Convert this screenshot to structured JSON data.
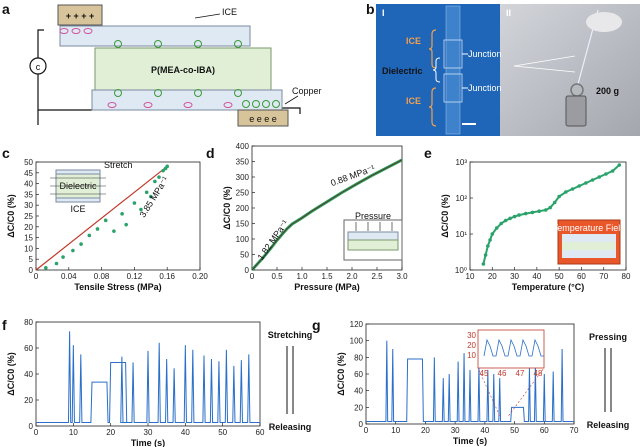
{
  "panel_letters": [
    "a",
    "b",
    "c",
    "d",
    "e",
    "f",
    "g"
  ],
  "panel_a": {
    "ice_label": "ICE",
    "dielectric_label": "P(MEA-co-IBA)",
    "copper_label": "Copper",
    "circuit_label": "c",
    "top_charges": "+ + + +",
    "bottom_charges": "e e e e"
  },
  "panel_b": {
    "sub_i": "I",
    "sub_ii": "II",
    "ice_top": "ICE",
    "ice_bottom": "ICE",
    "dielectric": "Dielectric",
    "junction_top": "Junction",
    "junction_bottom": "Junction",
    "weight": "200 g",
    "bg_color": "#1f66b8",
    "accent_color": "#f0a050"
  },
  "chart_data": [
    {
      "panel": "c",
      "type": "scatter",
      "xlabel": "Tensile Stress (MPa)",
      "ylabel": "ΔC/C0 (%)",
      "xlim": [
        0,
        0.2
      ],
      "ylim": [
        0,
        50
      ],
      "xticks": [
        "0",
        "0.04",
        "0.08",
        "0.12",
        "0.16",
        "0.20"
      ],
      "yticks": [
        "0",
        "5",
        "10",
        "15",
        "20",
        "25",
        "30",
        "35",
        "40",
        "45",
        "50"
      ],
      "points_x": [
        0.012,
        0.025,
        0.033,
        0.045,
        0.055,
        0.065,
        0.075,
        0.085,
        0.095,
        0.105,
        0.11,
        0.12,
        0.128,
        0.135,
        0.14,
        0.145,
        0.15,
        0.155,
        0.158,
        0.16
      ],
      "points_y": [
        1,
        3,
        6,
        9,
        12,
        16,
        19,
        23,
        18,
        26,
        21,
        31,
        28,
        36,
        34,
        41,
        43,
        46,
        47,
        48
      ],
      "fit_x": [
        0,
        0.16
      ],
      "fit_y": [
        -3,
        48
      ],
      "annotation": "3.85 MPa⁻¹",
      "inset_labels": [
        "Stretch",
        "Dielectric",
        "ICE"
      ]
    },
    {
      "panel": "d",
      "type": "line",
      "xlabel": "Pressure (MPa)",
      "ylabel": "ΔC/C0 (%)",
      "xlim": [
        0,
        3.0
      ],
      "ylim": [
        0,
        400
      ],
      "xticks": [
        "0",
        "0.5",
        "1.0",
        "1.5",
        "2.0",
        "2.5",
        "3.0"
      ],
      "yticks": [
        "0",
        "50",
        "100",
        "150",
        "200",
        "250",
        "300",
        "350",
        "400"
      ],
      "x": [
        0,
        0.1,
        0.2,
        0.3,
        0.4,
        0.5,
        0.6,
        0.7,
        0.8,
        1.0,
        1.2,
        1.5,
        1.8,
        2.1,
        2.4,
        2.7,
        3.0
      ],
      "y": [
        0,
        18,
        36,
        55,
        75,
        96,
        115,
        133,
        148,
        168,
        190,
        220,
        250,
        278,
        305,
        330,
        355
      ],
      "annotations": [
        "0.88 MPa⁻¹",
        "1.82 MPa⁻¹"
      ],
      "inset_label": "Pressure"
    },
    {
      "panel": "e",
      "type": "scatter",
      "xlabel": "Temperature (°C)",
      "ylabel": "ΔC/C0 (%)",
      "xlim": [
        10,
        80
      ],
      "ylog": true,
      "ylim_exp": [
        0,
        3.6
      ],
      "xticks": [
        "10",
        "20",
        "30",
        "40",
        "50",
        "60",
        "70",
        "80"
      ],
      "yticks": [
        "10⁰",
        "10¹",
        "10²",
        "10³"
      ],
      "x": [
        16,
        17,
        18,
        19,
        20,
        22,
        24,
        26,
        28,
        30,
        32,
        35,
        38,
        41,
        44,
        46,
        48,
        50,
        53,
        56,
        59,
        62,
        65,
        68,
        71,
        74,
        77
      ],
      "y_exp": [
        0.2,
        0.5,
        0.8,
        1.0,
        1.2,
        1.4,
        1.55,
        1.65,
        1.72,
        1.78,
        1.83,
        1.88,
        1.92,
        1.96,
        2.0,
        2.08,
        2.25,
        2.45,
        2.6,
        2.7,
        2.8,
        2.9,
        3.0,
        3.1,
        3.2,
        3.3,
        3.5
      ],
      "inset_label": "Temperature Field"
    },
    {
      "panel": "f",
      "type": "line",
      "xlabel": "Time (s)",
      "ylabel": "ΔC/C0 (%)",
      "xlim": [
        0,
        60
      ],
      "ylim": [
        0,
        90
      ],
      "xticks": [
        "0",
        "10",
        "20",
        "30",
        "40",
        "50",
        "60"
      ],
      "yticks": [
        "0",
        "20",
        "40",
        "60",
        "80"
      ],
      "peaks_t": [
        9,
        10,
        12,
        23,
        26,
        30,
        33,
        35,
        37,
        40,
        42,
        45,
        47,
        49,
        51,
        53,
        55,
        57
      ],
      "peaks_h": [
        82,
        70,
        62,
        60,
        55,
        65,
        72,
        58,
        50,
        70,
        66,
        61,
        58,
        56,
        66,
        52,
        57,
        62
      ],
      "plateaus": [
        [
          15,
          19,
          38
        ],
        [
          20,
          24,
          55
        ]
      ],
      "side_top": "Stretching",
      "side_bottom": "Releasing"
    },
    {
      "panel": "g",
      "type": "line",
      "xlabel": "Time (s)",
      "ylabel": "ΔC/C0 (%)",
      "xlim": [
        0,
        70
      ],
      "ylim": [
        0,
        120
      ],
      "xticks": [
        "0",
        "10",
        "20",
        "30",
        "40",
        "50",
        "60",
        "70"
      ],
      "yticks": [
        "0",
        "20",
        "40",
        "60",
        "80",
        "100",
        "120"
      ],
      "peaks_t": [
        7,
        9,
        23,
        26,
        28,
        31,
        33,
        35,
        38,
        41,
        43,
        45,
        55,
        57,
        60,
        63,
        66
      ],
      "peaks_h": [
        100,
        90,
        80,
        55,
        60,
        75,
        85,
        65,
        72,
        65,
        60,
        55,
        68,
        72,
        60,
        63,
        90
      ],
      "plateaus": [
        [
          14,
          19,
          78
        ],
        [
          49,
          53,
          20
        ]
      ],
      "inset_xticks": [
        "45",
        "46",
        "47",
        "48"
      ],
      "inset_yticks": [
        "30",
        "20",
        "10"
      ],
      "side_top": "Pressing",
      "side_bottom": "Releasing"
    }
  ]
}
